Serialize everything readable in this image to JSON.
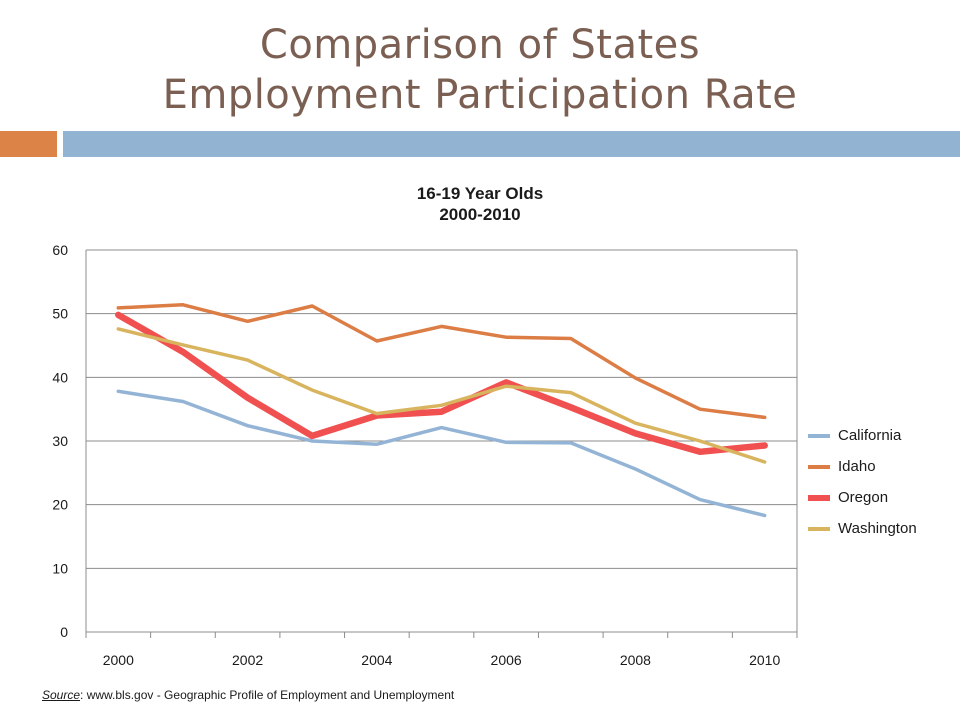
{
  "slide": {
    "title_line1": "Comparison of States",
    "title_line2": "Employment Participation Rate",
    "source_label": "Source",
    "source_text": ": www.bls.gov - Geographic Profile of Employment and Unemployment"
  },
  "colors": {
    "accent_orange": "#dc8347",
    "accent_blue": "#93b3d3"
  },
  "chart_data": {
    "type": "line",
    "title_line1": "16-19 Year Olds",
    "title_line2": "2000-2010",
    "x": [
      2000,
      2001,
      2002,
      2003,
      2004,
      2005,
      2006,
      2007,
      2008,
      2009,
      2010
    ],
    "x_tick_labels": [
      "2000",
      "2002",
      "2004",
      "2006",
      "2008",
      "2010"
    ],
    "y_ticks": [
      0,
      10,
      20,
      30,
      40,
      50,
      60
    ],
    "ylim": [
      0,
      60
    ],
    "grid": true,
    "legend_position": "right",
    "series": [
      {
        "name": "California",
        "color": "#94b4d6",
        "values": [
          37.8,
          36.2,
          32.4,
          30.0,
          29.5,
          32.1,
          29.8,
          29.7,
          25.6,
          20.8,
          18.3
        ]
      },
      {
        "name": "Idaho",
        "color": "#dc7d45",
        "values": [
          50.9,
          51.4,
          48.8,
          51.2,
          45.7,
          48.0,
          46.3,
          46.1,
          39.9,
          35.0,
          33.7
        ]
      },
      {
        "name": "Oregon",
        "color": "#f05050",
        "values": [
          49.8,
          44.0,
          36.8,
          30.8,
          34.0,
          34.6,
          39.2,
          35.3,
          31.2,
          28.3,
          29.3
        ]
      },
      {
        "name": "Washington",
        "color": "#d8b45e",
        "values": [
          47.6,
          45.1,
          42.7,
          38.0,
          34.3,
          35.6,
          38.6,
          37.6,
          32.8,
          30.0,
          26.7
        ]
      }
    ]
  }
}
